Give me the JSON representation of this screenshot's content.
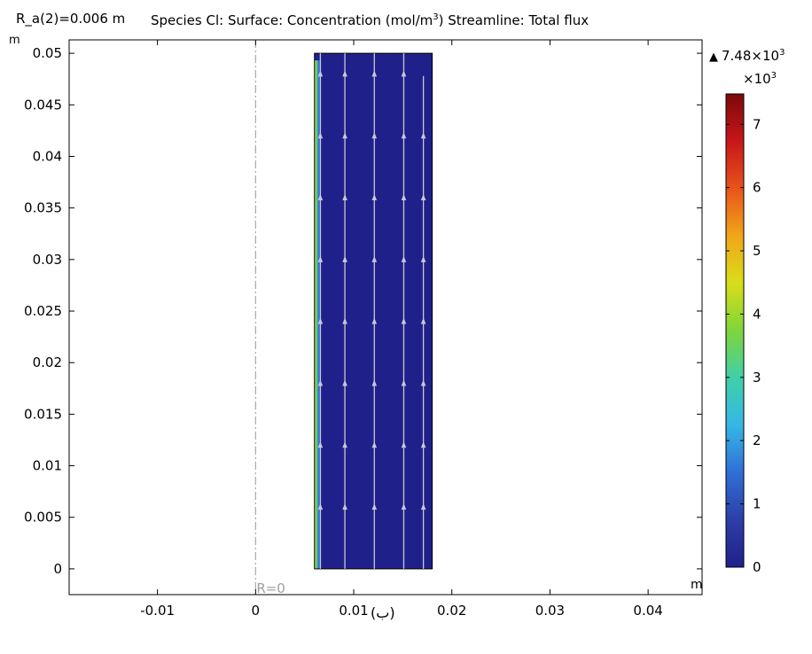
{
  "header": {
    "parameter": "R_a(2)=0.006 m",
    "title_prefix": "Species Cl:   Surface: Concentration (mol/m",
    "title_sup": "3",
    "title_suffix": ")  Streamline: Total flux"
  },
  "caption": "(ب)",
  "colorbar": {
    "max_value": "7.48×10",
    "max_sup": "3",
    "scale_base": "×10",
    "scale_sup": "3",
    "range": [
      0,
      7.48
    ],
    "ticks": [
      "0",
      "1",
      "2",
      "3",
      "4",
      "5",
      "6",
      "7"
    ],
    "tick_values": [
      0,
      1,
      2,
      3,
      4,
      5,
      6,
      7
    ],
    "colormap": [
      "#20208a",
      "#2e3ea8",
      "#2f6fd6",
      "#35b7e6",
      "#3fd0a8",
      "#7fd43a",
      "#d8de1a",
      "#f2a51a",
      "#e8541a",
      "#c8161a",
      "#7a0a0a"
    ]
  },
  "chart_data": {
    "type": "heatmap",
    "x_unit": "m",
    "y_unit": "m",
    "xlim": [
      -0.019,
      0.0455
    ],
    "ylim": [
      -0.0025,
      0.0513
    ],
    "x_ticks": [
      -0.01,
      0,
      0.01,
      0.02,
      0.03,
      0.04
    ],
    "x_tick_labels": [
      "-0.01",
      "0",
      "0.01",
      "0.02",
      "0.03",
      "0.04"
    ],
    "y_ticks": [
      0,
      0.005,
      0.01,
      0.015,
      0.02,
      0.025,
      0.03,
      0.035,
      0.04,
      0.045,
      0.05
    ],
    "y_tick_labels": [
      "0",
      "0.005",
      "0.01",
      "0.015",
      "0.02",
      "0.025",
      "0.03",
      "0.035",
      "0.04",
      "0.045",
      "0.05"
    ],
    "axis_label": "R=0",
    "axis_x": 0,
    "domain": {
      "r_min": 0.006,
      "r_max": 0.018,
      "z_min": 0,
      "z_max": 0.05
    },
    "field": {
      "bulk_value": 0,
      "wall_value": 7.48
    },
    "streamlines": [
      {
        "r": 0.0066,
        "z_start": 0,
        "z_end": 0.05
      },
      {
        "r": 0.0091,
        "z_start": 0,
        "z_end": 0.05
      },
      {
        "r": 0.0121,
        "z_start": 0,
        "z_end": 0.05
      },
      {
        "r": 0.0151,
        "z_start": 0,
        "z_end": 0.05
      },
      {
        "r": 0.0171,
        "z_start": 0,
        "z_end": 0.0478
      }
    ],
    "arrow_z": [
      0.006,
      0.012,
      0.018,
      0.024,
      0.03,
      0.036,
      0.042,
      0.048
    ],
    "colors": {
      "streamline": "#c8c8d4",
      "axis_line": "#a8a8a8",
      "domain_edge": "#000000"
    }
  }
}
